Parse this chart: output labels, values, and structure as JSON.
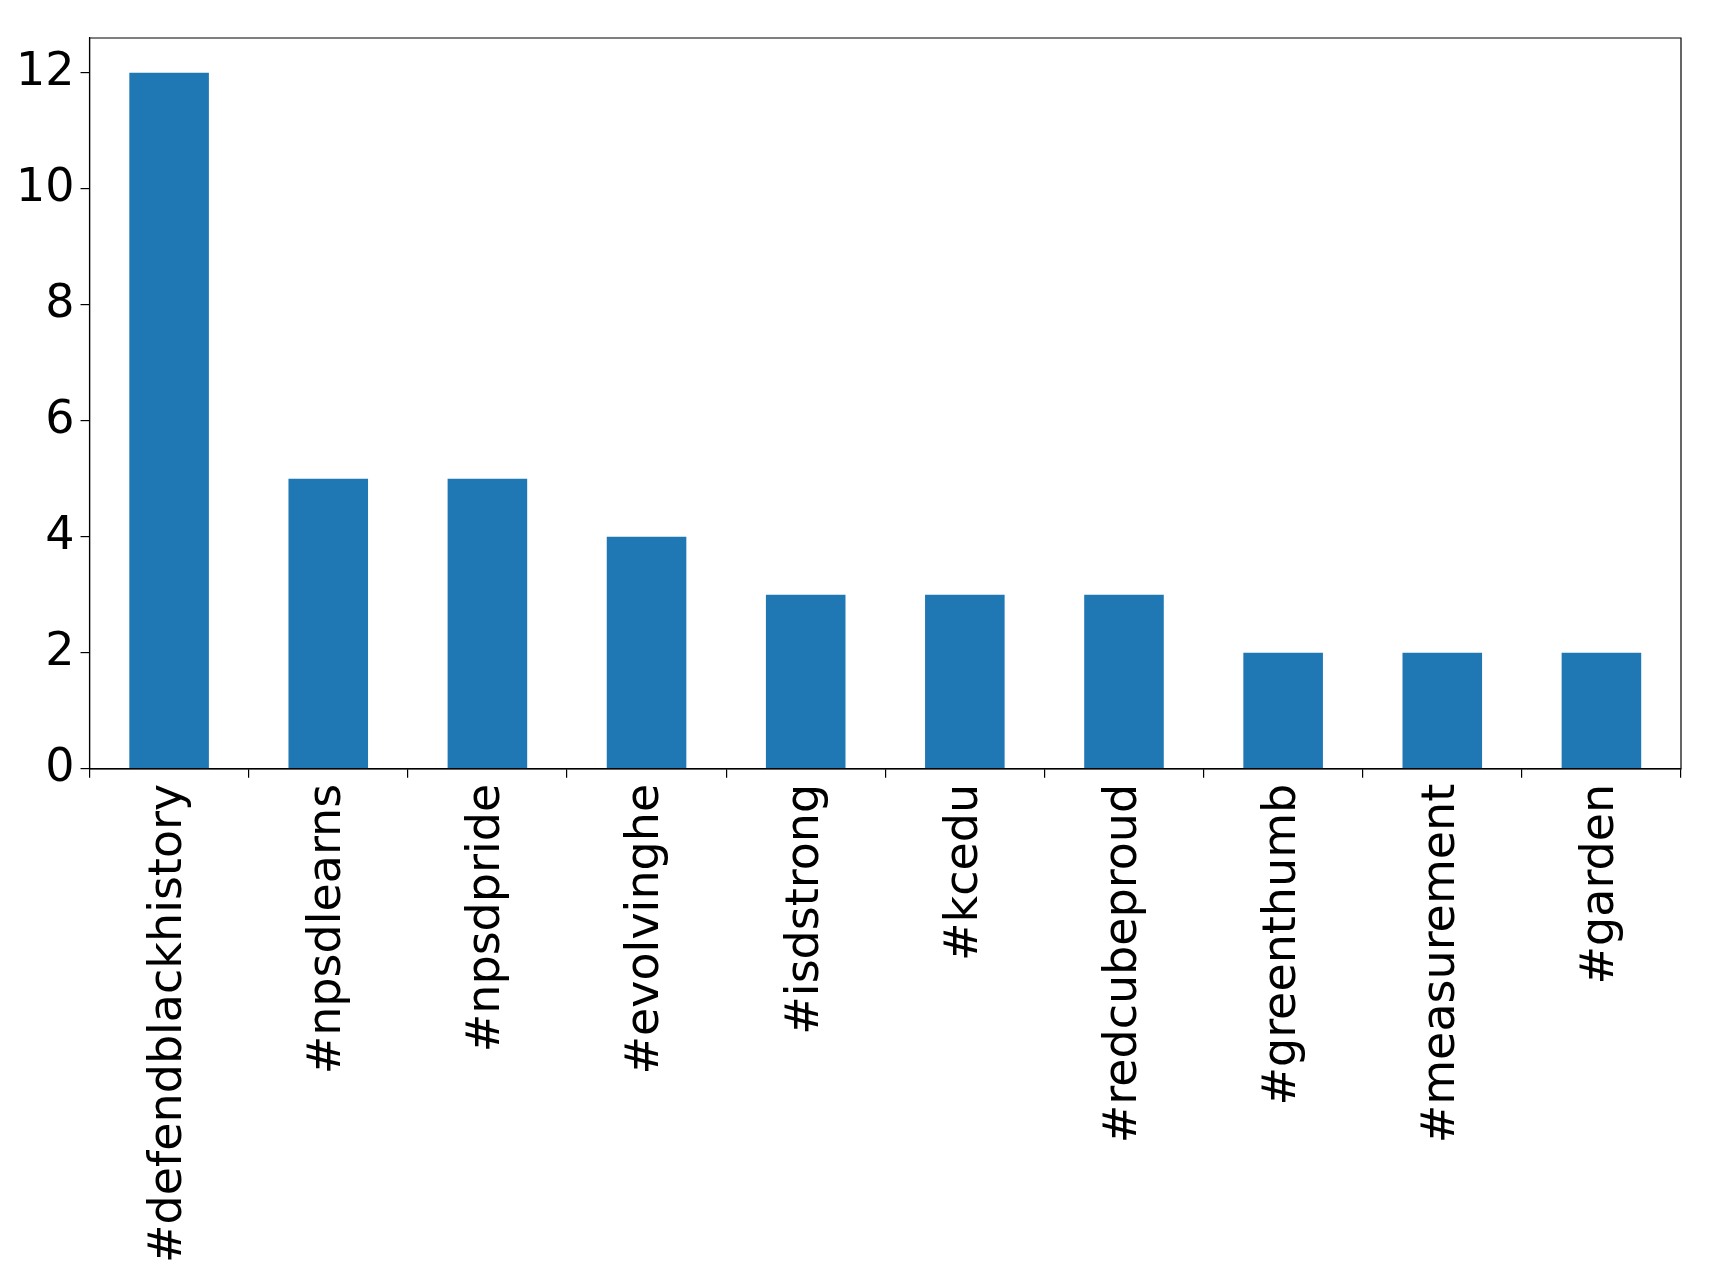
{
  "chart_data": {
    "type": "bar",
    "categories": [
      "#defendblackhistory",
      "#npsdlearns",
      "#npsdpride",
      "#evolvinghe",
      "#isdstrong",
      "#kcedu",
      "#redcubeproud",
      "#greenthumb",
      "#measurement",
      "#garden"
    ],
    "values": [
      12,
      5,
      5,
      4,
      3,
      3,
      3,
      2,
      2,
      2
    ],
    "color": "#1f77b4",
    "ylim": [
      0,
      12.6
    ],
    "yticks": [
      0,
      2,
      4,
      6,
      8,
      10,
      12
    ],
    "grid": false,
    "legend": false
  }
}
